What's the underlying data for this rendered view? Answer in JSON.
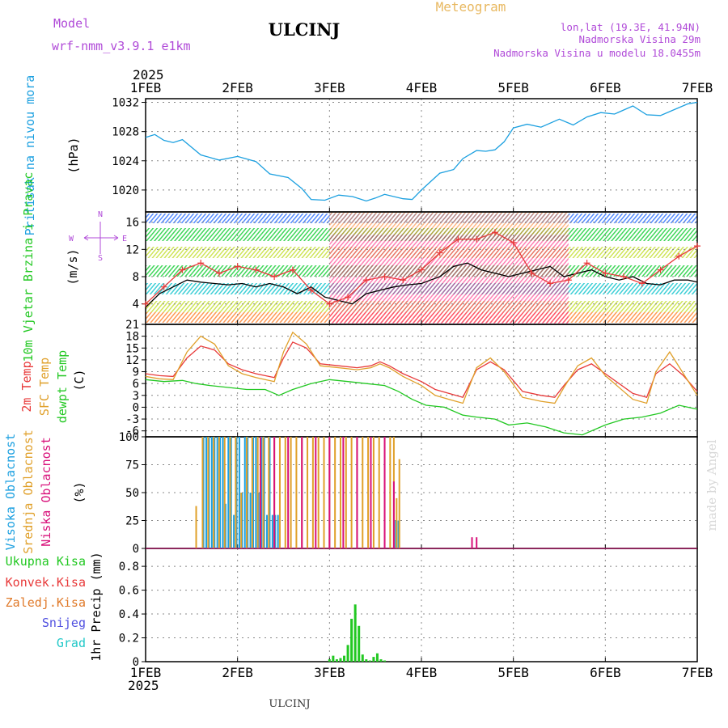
{
  "header": {
    "model_label": "Model",
    "model_name": "wrf-nmm_v3.9.1  e1km",
    "station": "ULCINJ",
    "meteogram": "Meteogram",
    "lonlat": "lon,lat (19.3E, 41.94N)",
    "elev": "Nadmorska Visina 29m",
    "elev_model": "Nadmorska Visina u modelu 18.0455m",
    "footer_station": "ULCINJ",
    "credit": "made by Angel"
  },
  "time_axis": {
    "year": "2025",
    "ticks": [
      "1FEB",
      "2FEB",
      "3FEB",
      "4FEB",
      "5FEB",
      "6FEB",
      "7FEB"
    ],
    "range_days": [
      0,
      6
    ]
  },
  "colors": {
    "pressure": "#1ca0e0",
    "t2m": "#e83a3a",
    "sfc": "#e0a02a",
    "dew": "#22c822",
    "cloud_high": "#1ca0e0",
    "cloud_mid": "#e0a02a",
    "cloud_low": "#d8107a",
    "precip": "#22c822",
    "model_text": "#b04ad8",
    "meteogram_text": "#e8b860"
  },
  "chart_data": [
    {
      "type": "line",
      "panel": "pressure",
      "ylabel": "Pritisak na nivou mora",
      "unit": "(hPa)",
      "yticks": [
        1020,
        1024,
        1028,
        1032
      ],
      "ylim": [
        1017,
        1032.5
      ],
      "series": [
        {
          "color": "#1ca0e0",
          "x": [
            0,
            0.1,
            0.2,
            0.3,
            0.4,
            0.6,
            0.8,
            1.0,
            1.2,
            1.35,
            1.55,
            1.7,
            1.8,
            1.95,
            2.1,
            2.25,
            2.4,
            2.5,
            2.6,
            2.8,
            2.9,
            3.0,
            3.2,
            3.35,
            3.45,
            3.6,
            3.7,
            3.8,
            3.9,
            4.0,
            4.15,
            4.3,
            4.5,
            4.65,
            4.8,
            4.95,
            5.1,
            5.3,
            5.45,
            5.6,
            5.75,
            5.9,
            6.0
          ],
          "y": [
            1027.2,
            1027.6,
            1026.8,
            1026.5,
            1026.9,
            1024.8,
            1024.1,
            1024.6,
            1023.9,
            1022.2,
            1021.7,
            1020.2,
            1018.7,
            1018.6,
            1019.3,
            1019.1,
            1018.5,
            1018.9,
            1019.4,
            1018.8,
            1018.7,
            1020.0,
            1022.3,
            1022.8,
            1024.3,
            1025.4,
            1025.3,
            1025.5,
            1026.6,
            1028.5,
            1029.0,
            1028.6,
            1029.7,
            1028.9,
            1030.0,
            1030.6,
            1030.4,
            1031.5,
            1030.3,
            1030.2,
            1031.0,
            1031.8,
            1032.0
          ]
        }
      ]
    },
    {
      "type": "line",
      "panel": "wind",
      "ylabel": "10m Vjetar Brzina i Pravac",
      "unit": "(m/s)",
      "compass": [
        "N",
        "S",
        "W",
        "E"
      ],
      "yticks": [
        4,
        8,
        12,
        16
      ],
      "ylim": [
        1,
        17.5
      ],
      "series": [
        {
          "color": "#000000",
          "x": [
            0,
            0.15,
            0.3,
            0.45,
            0.6,
            0.75,
            0.9,
            1.05,
            1.2,
            1.35,
            1.5,
            1.65,
            1.8,
            1.95,
            2.1,
            2.25,
            2.4,
            2.55,
            2.7,
            2.85,
            3.0,
            3.1,
            3.2,
            3.35,
            3.5,
            3.65,
            3.8,
            3.95,
            4.1,
            4.25,
            4.4,
            4.55,
            4.7,
            4.85,
            5.0,
            5.15,
            5.3,
            5.45,
            5.6,
            5.75,
            5.9,
            6.0
          ],
          "y": [
            3.5,
            5.5,
            6.5,
            7.5,
            7.2,
            7.0,
            6.8,
            7.0,
            6.5,
            7.0,
            6.5,
            5.5,
            6.5,
            5.0,
            4.5,
            4.0,
            5.5,
            6.0,
            6.5,
            6.8,
            7.0,
            7.5,
            8.0,
            9.5,
            10.0,
            9.0,
            8.5,
            8.0,
            8.5,
            9.0,
            9.5,
            8.0,
            8.5,
            9.0,
            8.0,
            7.5,
            8.0,
            7.0,
            6.8,
            7.5,
            7.5,
            7.2
          ]
        },
        {
          "color": "#e83a3a",
          "x": [
            0,
            0.2,
            0.4,
            0.6,
            0.8,
            1.0,
            1.2,
            1.4,
            1.6,
            1.8,
            2.0,
            2.2,
            2.4,
            2.6,
            2.8,
            3.0,
            3.2,
            3.4,
            3.6,
            3.8,
            4.0,
            4.2,
            4.4,
            4.6,
            4.8,
            5.0,
            5.2,
            5.4,
            5.6,
            5.8,
            6.0
          ],
          "y": [
            4.0,
            6.5,
            9.0,
            10.0,
            8.5,
            9.5,
            9.0,
            8.0,
            9.0,
            6.0,
            4.0,
            5.0,
            7.5,
            8.0,
            7.5,
            9.0,
            11.5,
            13.5,
            13.5,
            14.5,
            13.0,
            8.5,
            7.0,
            7.5,
            10.0,
            8.5,
            8.0,
            7.0,
            9.0,
            11.0,
            12.5
          ]
        }
      ]
    },
    {
      "type": "line",
      "panel": "temperature",
      "labels": [
        "2m Temp",
        "SFC Temp",
        "dewpt Temp"
      ],
      "unit": "(C)",
      "yticks": [
        -6,
        -3,
        0,
        3,
        6,
        9,
        12,
        15,
        18,
        21
      ],
      "ylim": [
        -7.5,
        21
      ],
      "series": [
        {
          "name": "2m Temp",
          "color": "#e83a3a",
          "x": [
            0,
            0.15,
            0.3,
            0.45,
            0.6,
            0.75,
            0.9,
            1.05,
            1.2,
            1.4,
            1.5,
            1.6,
            1.75,
            1.9,
            2.1,
            2.3,
            2.45,
            2.55,
            2.65,
            2.8,
            3.0,
            3.15,
            3.3,
            3.45,
            3.6,
            3.75,
            3.9,
            4.1,
            4.3,
            4.45,
            4.55,
            4.7,
            4.85,
            5.0,
            5.3,
            5.45,
            5.55,
            5.7,
            5.85,
            6.0
          ],
          "y": [
            8.5,
            8.0,
            7.8,
            12.5,
            15.5,
            14.5,
            11.0,
            9.5,
            8.5,
            7.5,
            12.5,
            16.5,
            15.0,
            11.0,
            10.5,
            10.0,
            10.5,
            11.5,
            10.5,
            8.5,
            6.5,
            4.5,
            3.5,
            2.5,
            9.5,
            11.5,
            9.5,
            4.0,
            3.0,
            2.5,
            5.5,
            9.5,
            11.0,
            8.5,
            3.5,
            2.5,
            8.5,
            11.0,
            8.0,
            4.0
          ]
        },
        {
          "name": "SFC Temp",
          "color": "#e0a02a",
          "x": [
            0,
            0.15,
            0.3,
            0.45,
            0.6,
            0.75,
            0.9,
            1.05,
            1.2,
            1.4,
            1.5,
            1.6,
            1.75,
            1.9,
            2.1,
            2.3,
            2.45,
            2.55,
            2.65,
            2.8,
            3.0,
            3.15,
            3.3,
            3.45,
            3.6,
            3.75,
            3.9,
            4.1,
            4.3,
            4.45,
            4.55,
            4.7,
            4.85,
            5.0,
            5.3,
            5.45,
            5.55,
            5.7,
            5.85,
            6.0
          ],
          "y": [
            7.8,
            7.2,
            7.0,
            14.0,
            18.0,
            16.0,
            10.5,
            8.5,
            7.5,
            6.5,
            14.0,
            19.0,
            16.0,
            10.5,
            10.0,
            9.5,
            10.0,
            11.0,
            10.0,
            7.8,
            5.5,
            3.0,
            2.0,
            1.0,
            10.0,
            12.5,
            9.0,
            2.5,
            1.5,
            1.0,
            5.0,
            10.5,
            12.5,
            8.0,
            2.0,
            1.0,
            9.0,
            14.0,
            8.5,
            3.0
          ]
        },
        {
          "name": "dewpt Temp",
          "color": "#22c822",
          "x": [
            0,
            0.2,
            0.4,
            0.55,
            0.7,
            0.9,
            1.1,
            1.3,
            1.45,
            1.6,
            1.8,
            2.0,
            2.2,
            2.4,
            2.6,
            2.75,
            2.9,
            3.05,
            3.25,
            3.45,
            3.6,
            3.8,
            3.95,
            4.15,
            4.35,
            4.55,
            4.75,
            5.0,
            5.2,
            5.4,
            5.6,
            5.8,
            6.0
          ],
          "y": [
            7.0,
            6.5,
            6.8,
            6.0,
            5.5,
            5.0,
            4.5,
            4.5,
            3.0,
            4.5,
            6.0,
            7.0,
            6.5,
            6.0,
            5.5,
            4.0,
            2.0,
            0.5,
            0.0,
            -2.0,
            -2.5,
            -3.0,
            -4.5,
            -4.0,
            -5.0,
            -6.5,
            -7.0,
            -4.5,
            -3.0,
            -2.5,
            -1.5,
            0.5,
            -0.5
          ]
        }
      ]
    },
    {
      "type": "bar",
      "panel": "clouds",
      "labels": [
        "Visoka Oblacnost",
        "Srednja Oblacnost",
        "Niska Oblacnost"
      ],
      "unit": "(%)",
      "yticks": [
        0,
        25,
        50,
        75,
        100
      ],
      "ylim": [
        0,
        100
      ],
      "series": [
        {
          "name": "Visoka Oblacnost",
          "color": "#1ca0e0",
          "x": [
            0.63,
            0.66,
            0.69,
            0.72,
            0.75,
            0.78,
            0.81,
            0.84,
            0.87,
            0.9,
            0.93,
            0.96,
            0.99,
            1.02,
            1.05,
            1.08,
            1.11,
            1.14,
            1.17,
            1.2,
            1.23,
            1.26,
            1.29,
            1.32,
            1.35,
            1.38,
            1.41,
            1.44,
            2.72,
            2.75
          ],
          "values": [
            100,
            100,
            100,
            100,
            100,
            100,
            100,
            100,
            40,
            100,
            100,
            30,
            100,
            100,
            50,
            100,
            100,
            50,
            100,
            100,
            50,
            100,
            100,
            30,
            100,
            30,
            30,
            30,
            25,
            25
          ]
        },
        {
          "name": "Srednja Oblacnost",
          "color": "#e0a02a",
          "x": [
            0.55,
            0.62,
            0.68,
            0.74,
            0.8,
            0.86,
            0.92,
            0.98,
            1.04,
            1.1,
            1.16,
            1.22,
            1.28,
            1.34,
            1.4,
            1.46,
            1.52,
            1.58,
            1.64,
            1.7,
            1.76,
            1.82,
            1.88,
            1.94,
            2.0,
            2.06,
            2.12,
            2.18,
            2.24,
            2.3,
            2.36,
            2.42,
            2.48,
            2.54,
            2.6,
            2.66,
            2.7,
            2.73,
            2.76
          ],
          "values": [
            38,
            100,
            100,
            100,
            100,
            100,
            100,
            100,
            50,
            100,
            100,
            100,
            100,
            100,
            100,
            100,
            100,
            100,
            100,
            100,
            100,
            100,
            100,
            100,
            100,
            100,
            100,
            100,
            100,
            100,
            100,
            100,
            100,
            100,
            100,
            100,
            100,
            45,
            80
          ]
        },
        {
          "name": "Niska Oblacnost",
          "color": "#d8107a",
          "x": [
            1.25,
            1.4,
            1.55,
            1.7,
            1.85,
            2.0,
            2.15,
            2.3,
            2.45,
            2.6,
            2.7,
            3.55,
            3.6
          ],
          "values": [
            100,
            100,
            100,
            100,
            100,
            100,
            100,
            100,
            100,
            100,
            60,
            10,
            10
          ]
        }
      ]
    },
    {
      "type": "bar",
      "panel": "precip",
      "labels": [
        "Ukupna Kisa",
        "Konvek.Kisa",
        "Zaledj.Kisa",
        "Snijeg",
        "Grad"
      ],
      "label_colors": [
        "#22c822",
        "#e83a3a",
        "#e07a2a",
        "#5050e0",
        "#22c8c8"
      ],
      "unit": "1hr Precip (mm)",
      "yticks": [
        0,
        0.2,
        0.4,
        0.6,
        0.8
      ],
      "ylim": [
        0,
        0.95
      ],
      "series": [
        {
          "name": "Ukupna Kisa",
          "color": "#22c822",
          "x": [
            2.0,
            2.04,
            2.08,
            2.12,
            2.16,
            2.2,
            2.24,
            2.28,
            2.32,
            2.36,
            2.4,
            2.44,
            2.48,
            2.52,
            2.56,
            2.6
          ],
          "values": [
            0.02,
            0.05,
            0.02,
            0.03,
            0.05,
            0.14,
            0.36,
            0.48,
            0.3,
            0.06,
            0.02,
            0.01,
            0.04,
            0.07,
            0.02,
            0.01
          ]
        }
      ]
    }
  ]
}
